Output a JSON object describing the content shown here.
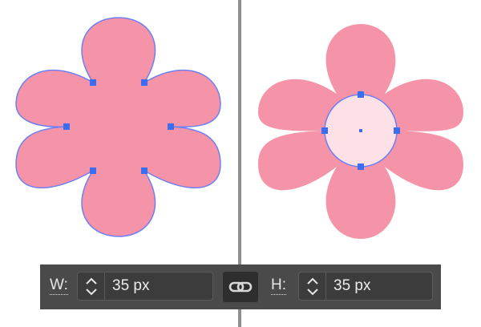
{
  "colors": {
    "petal": "#f594a8",
    "center": "#fde1e6",
    "outline": "#6f7ff2",
    "anchor": "#3a6df2",
    "panel_bg": "#4a4a4a",
    "divider": "#8f8f8f"
  },
  "toolbar": {
    "width_label": "W:",
    "width_value": "35 px",
    "height_label": "H:",
    "height_value": "35 px",
    "link_icon": "chain-link-icon",
    "stepper_icon": "chevron-up-down-icon"
  }
}
